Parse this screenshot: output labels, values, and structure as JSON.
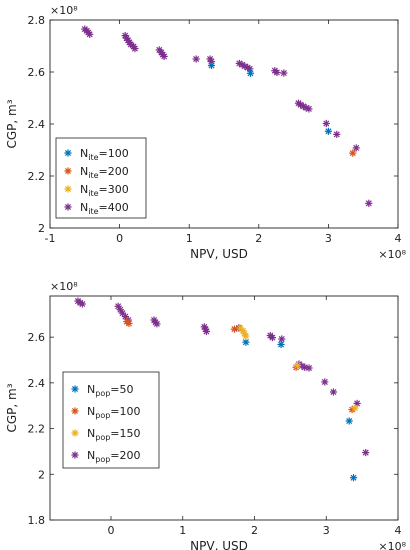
{
  "chart_data": [
    {
      "type": "scatter",
      "title": "",
      "xlabel": "NPV, USD",
      "ylabel": "CGP, m³",
      "x_exponent": "×10⁸",
      "y_exponent": "×10⁸",
      "xlim": [
        -1,
        4
      ],
      "ylim": [
        2.0,
        2.8
      ],
      "xticks": [
        "-1",
        "0",
        "1",
        "2",
        "3",
        "4"
      ],
      "yticks": [
        "2",
        "2.2",
        "2.4",
        "2.6",
        "2.8"
      ],
      "legend_position": "lower-left",
      "legend_entries": [
        {
          "base": "N",
          "sub": "ite",
          "suffix": "=100",
          "color": "#0072BD"
        },
        {
          "base": "N",
          "sub": "ite",
          "suffix": "=200",
          "color": "#D95319"
        },
        {
          "base": "N",
          "sub": "ite",
          "suffix": "=300",
          "color": "#EDB120"
        },
        {
          "base": "N",
          "sub": "ite",
          "suffix": "=400",
          "color": "#7E2F8E"
        }
      ],
      "series": [
        {
          "name": "Nite=100",
          "color": "#0072BD",
          "points": [
            [
              1.32,
              2.625
            ],
            [
              1.88,
              2.595
            ],
            [
              3.0,
              2.372
            ]
          ]
        },
        {
          "name": "Nite=200",
          "color": "#D95319",
          "points": [
            [
              3.35,
              2.288
            ]
          ]
        },
        {
          "name": "Nite=300",
          "color": "#EDB120",
          "points": []
        },
        {
          "name": "Nite=400",
          "color": "#7E2F8E",
          "points": [
            [
              -0.5,
              2.765
            ],
            [
              -0.47,
              2.758
            ],
            [
              -0.45,
              2.752
            ],
            [
              -0.43,
              2.745
            ],
            [
              0.08,
              2.74
            ],
            [
              0.1,
              2.73
            ],
            [
              0.12,
              2.722
            ],
            [
              0.14,
              2.714
            ],
            [
              0.16,
              2.706
            ],
            [
              0.2,
              2.698
            ],
            [
              0.22,
              2.69
            ],
            [
              0.57,
              2.685
            ],
            [
              0.6,
              2.675
            ],
            [
              0.62,
              2.667
            ],
            [
              0.64,
              2.66
            ],
            [
              1.1,
              2.65
            ],
            [
              1.3,
              2.65
            ],
            [
              1.32,
              2.64
            ],
            [
              1.72,
              2.633
            ],
            [
              1.76,
              2.628
            ],
            [
              1.8,
              2.622
            ],
            [
              1.84,
              2.617
            ],
            [
              1.87,
              2.612
            ],
            [
              2.23,
              2.605
            ],
            [
              2.26,
              2.598
            ],
            [
              2.36,
              2.596
            ],
            [
              2.57,
              2.48
            ],
            [
              2.6,
              2.474
            ],
            [
              2.64,
              2.468
            ],
            [
              2.68,
              2.462
            ],
            [
              2.72,
              2.458
            ],
            [
              2.97,
              2.402
            ],
            [
              3.12,
              2.36
            ],
            [
              3.4,
              2.308
            ],
            [
              3.58,
              2.095
            ]
          ]
        }
      ]
    },
    {
      "type": "scatter",
      "title": "",
      "xlabel": "NPV, USD",
      "ylabel": "CGP, m³",
      "x_exponent": "×10⁸",
      "y_exponent": "×10⁸",
      "xlim": [
        -0.85,
        4
      ],
      "ylim": [
        1.8,
        2.78
      ],
      "xticks": [
        "0",
        "1",
        "2",
        "3",
        "4"
      ],
      "yticks": [
        "1.8",
        "2",
        "2.2",
        "2.4",
        "2.6"
      ],
      "legend_position": "lower-left",
      "legend_entries": [
        {
          "base": "N",
          "sub": "pop",
          "suffix": "=50",
          "color": "#0072BD"
        },
        {
          "base": "N",
          "sub": "pop",
          "suffix": "=100",
          "color": "#D95319"
        },
        {
          "base": "N",
          "sub": "pop",
          "suffix": "=150",
          "color": "#EDB120"
        },
        {
          "base": "N",
          "sub": "pop",
          "suffix": "=200",
          "color": "#7E2F8E"
        }
      ],
      "series": [
        {
          "name": "Npop=50",
          "color": "#0072BD",
          "points": [
            [
              1.88,
              2.578
            ],
            [
              2.37,
              2.568
            ],
            [
              3.32,
              2.233
            ],
            [
              3.38,
              1.985
            ]
          ]
        },
        {
          "name": "Npop=100",
          "color": "#D95319",
          "points": [
            [
              0.22,
              2.668
            ],
            [
              0.25,
              2.66
            ],
            [
              1.72,
              2.635
            ],
            [
              2.58,
              2.468
            ],
            [
              3.36,
              2.283
            ]
          ]
        },
        {
          "name": "Npop=150",
          "color": "#EDB120",
          "points": [
            [
              1.8,
              2.64
            ],
            [
              1.84,
              2.628
            ],
            [
              1.86,
              2.615
            ],
            [
              1.88,
              2.605
            ],
            [
              2.6,
              2.476
            ],
            [
              3.4,
              2.29
            ]
          ]
        },
        {
          "name": "Npop=200",
          "color": "#7E2F8E",
          "points": [
            [
              -0.46,
              2.758
            ],
            [
              -0.43,
              2.75
            ],
            [
              -0.4,
              2.745
            ],
            [
              0.1,
              2.735
            ],
            [
              0.13,
              2.72
            ],
            [
              0.16,
              2.705
            ],
            [
              0.2,
              2.69
            ],
            [
              0.24,
              2.675
            ],
            [
              0.6,
              2.675
            ],
            [
              0.62,
              2.665
            ],
            [
              0.64,
              2.658
            ],
            [
              1.3,
              2.645
            ],
            [
              1.32,
              2.635
            ],
            [
              1.33,
              2.625
            ],
            [
              1.78,
              2.64
            ],
            [
              2.22,
              2.607
            ],
            [
              2.25,
              2.598
            ],
            [
              2.38,
              2.592
            ],
            [
              2.62,
              2.482
            ],
            [
              2.66,
              2.474
            ],
            [
              2.7,
              2.468
            ],
            [
              2.76,
              2.465
            ],
            [
              2.98,
              2.404
            ],
            [
              3.1,
              2.36
            ],
            [
              3.43,
              2.31
            ],
            [
              3.55,
              2.095
            ]
          ]
        }
      ]
    }
  ]
}
